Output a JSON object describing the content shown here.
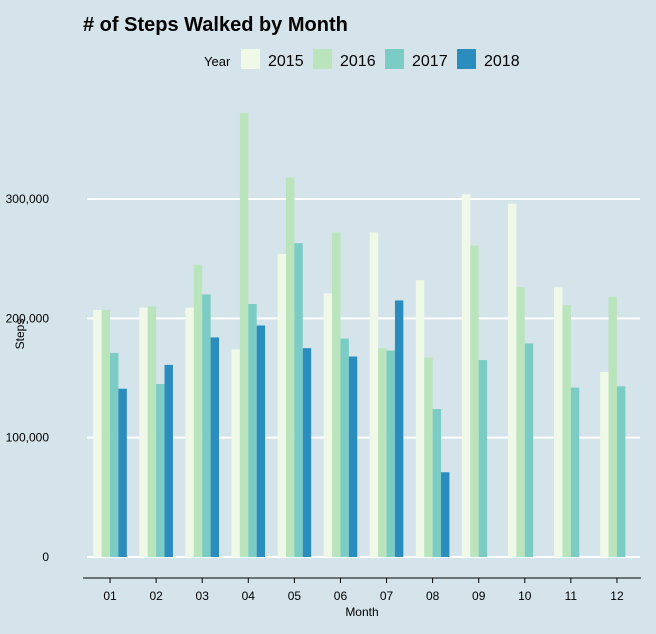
{
  "chart_data": {
    "type": "bar",
    "title": "# of Steps Walked by Month",
    "xlabel": "Month",
    "ylabel": "Steps",
    "categories": [
      "01",
      "02",
      "03",
      "04",
      "05",
      "06",
      "07",
      "08",
      "09",
      "10",
      "11",
      "12"
    ],
    "ylim": [
      0,
      375000
    ],
    "yticks": [
      0,
      100000,
      200000,
      300000
    ],
    "ytick_labels": [
      "0",
      "100,000",
      "200,000",
      "300,000"
    ],
    "grid": true,
    "legend": {
      "title": "Year",
      "position": "top"
    },
    "series": [
      {
        "name": "2015",
        "color": "#f0f9e8",
        "values": [
          207000,
          209000,
          209000,
          174000,
          254000,
          221000,
          272000,
          232000,
          304000,
          296000,
          226000,
          155000
        ]
      },
      {
        "name": "2016",
        "color": "#bae4bc",
        "values": [
          207000,
          210000,
          245000,
          372000,
          318000,
          272000,
          175000,
          167000,
          261000,
          226000,
          211000,
          218000
        ]
      },
      {
        "name": "2017",
        "color": "#7bccc4",
        "values": [
          171000,
          145000,
          220000,
          212000,
          263000,
          183000,
          173000,
          124000,
          165000,
          179000,
          142000,
          143000
        ]
      },
      {
        "name": "2018",
        "color": "#2b8cbe",
        "values": [
          141000,
          161000,
          184000,
          194000,
          175000,
          168000,
          215000,
          71000,
          null,
          null,
          null,
          null
        ]
      }
    ]
  }
}
